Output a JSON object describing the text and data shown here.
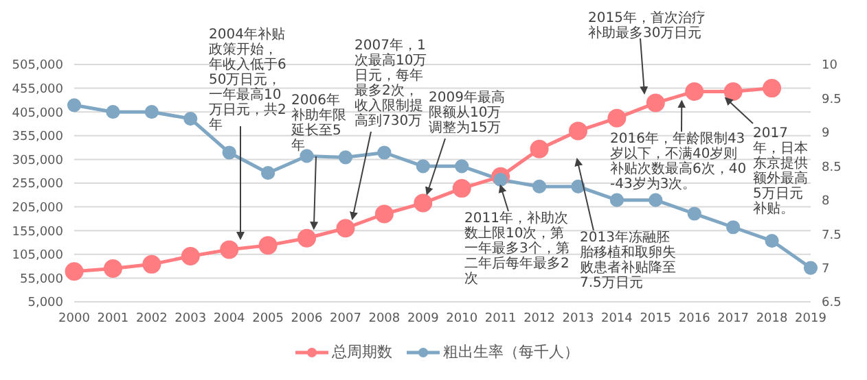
{
  "chart_data": {
    "type": "line",
    "categories": [
      "2000",
      "2001",
      "2002",
      "2003",
      "2004",
      "2005",
      "2006",
      "2007",
      "2008",
      "2009",
      "2010",
      "2011",
      "2012",
      "2013",
      "2014",
      "2015",
      "2016",
      "2017",
      "2018",
      "2019"
    ],
    "series": [
      {
        "name": "总周期数",
        "color": "#ff7c80",
        "values": [
          69000,
          75000,
          84000,
          101000,
          115000,
          124000,
          139000,
          160000,
          190000,
          213000,
          244000,
          269000,
          327000,
          365000,
          392000,
          424000,
          448000,
          448000,
          455000,
          null
        ]
      },
      {
        "name": "粗出生率（每千人）",
        "color": "#7fa7c4",
        "axis": "y2",
        "values": [
          9.4,
          9.3,
          9.3,
          9.2,
          8.7,
          8.4,
          8.65,
          8.63,
          8.7,
          8.5,
          8.5,
          8.3,
          8.2,
          8.2,
          8.0,
          8.0,
          7.8,
          7.6,
          7.4,
          7.0
        ]
      }
    ],
    "ylim": [
      5000,
      505000
    ],
    "yticks": [
      {
        "value": 5000,
        "label": "5,000"
      },
      {
        "value": 55000,
        "label": "55,000"
      },
      {
        "value": 105000,
        "label": "105,000"
      },
      {
        "value": 155000,
        "label": "155,000"
      },
      {
        "value": 205000,
        "label": "205,000"
      },
      {
        "value": 255000,
        "label": "255,000"
      },
      {
        "value": 305000,
        "label": "305,000"
      },
      {
        "value": 355000,
        "label": "355,000"
      },
      {
        "value": 405000,
        "label": "405,000"
      },
      {
        "value": 455000,
        "label": "455,000"
      },
      {
        "value": 505000,
        "label": "505,000"
      }
    ],
    "y2lim": [
      6.5,
      10
    ],
    "y2ticks": [
      6.5,
      7,
      7.5,
      8,
      8.5,
      9,
      9.5,
      10
    ],
    "grid": "y",
    "legend": "bottom",
    "marker": "circle",
    "annotations": [
      "2004年补贴政策开始，年收入低于650万日元，一年最高10万日元，共2年",
      {
        "text": "2006年补助年限延长至5年",
        "x": "2006",
        "y": 139000
      },
      {
        "text": "2007年，1次最高10万日元，每年最多2次，收入限制提高到730万",
        "x": "2007",
        "y": 160000
      },
      {
        "text": "2009年最高限额从10万调整为15万",
        "x": "2009",
        "y": 213000
      },
      {
        "text": "2011年，补助次数上限10次，第一年最多3个，第二年后每年最多2次",
        "x": "2011",
        "y": 269000
      },
      "2013年冻融胚胎移植和取卵失败患者补贴降至7.5万日元",
      "2015年，首次治疗补助最多30万日元",
      {
        "text": "2016年，年龄限制43岁以下，不满40岁则补贴次数最高6次，40-43岁为3次。",
        "x": "2016",
        "y": 448000
      },
      {
        "text": "2017年，日本东京提供额外最高5万日元补贴。",
        "x": "2017",
        "y": 448000
      }
    ]
  }
}
